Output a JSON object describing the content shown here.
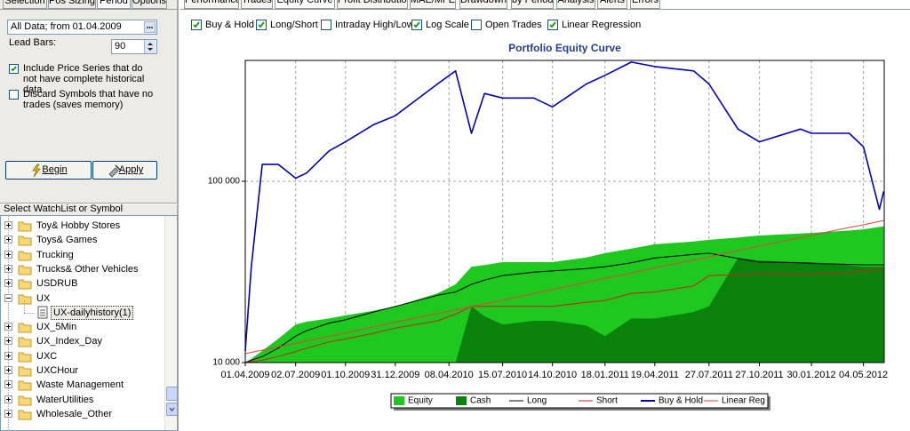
{
  "left_tabs": [
    {
      "label": "Selection",
      "active": false
    },
    {
      "label": "Pos Sizing",
      "active": false
    },
    {
      "label": "Period",
      "active": true
    },
    {
      "label": "Options",
      "active": false
    }
  ],
  "period": {
    "range": "All Data; from 01.04.2009",
    "lead_bars_label": "Lead Bars:",
    "lead_bars": 90
  },
  "settings": [
    {
      "label": "Include Price Series that do not have complete historical data",
      "checked": true
    },
    {
      "label": "Discard Symbols that have no trades (saves memory)",
      "checked": false
    }
  ],
  "buttons": [
    "Begin",
    "Apply"
  ],
  "watchlist": {
    "title": "Select WatchList or Symbol",
    "items": [
      {
        "label": "Toy& Hobby Stores",
        "kind": "folder",
        "expanded": false
      },
      {
        "label": "Toys& Games",
        "kind": "folder",
        "expanded": false
      },
      {
        "label": "Trucking",
        "kind": "folder",
        "expanded": false
      },
      {
        "label": "Trucks& Other Vehicles",
        "kind": "folder",
        "expanded": false
      },
      {
        "label": "USDRUB",
        "kind": "folder",
        "expanded": false
      },
      {
        "label": "UX",
        "kind": "folder",
        "expanded": true
      },
      {
        "label": "UX-dailyhistory(1)",
        "kind": "symbol",
        "selected": true
      },
      {
        "label": "UX_5Min",
        "kind": "folder",
        "expanded": false
      },
      {
        "label": "UX_Index_Day",
        "kind": "folder",
        "expanded": false
      },
      {
        "label": "UXC",
        "kind": "folder",
        "expanded": false
      },
      {
        "label": "UXCHour",
        "kind": "folder",
        "expanded": false
      },
      {
        "label": "Waste Management",
        "kind": "folder",
        "expanded": false
      },
      {
        "label": "WaterUtilities",
        "kind": "folder",
        "expanded": false
      },
      {
        "label": "Wholesale_Other",
        "kind": "folder",
        "expanded": false
      }
    ]
  },
  "main_tabs": [
    {
      "label": "Performance",
      "active": false
    },
    {
      "label": "Trades",
      "active": false
    },
    {
      "label": "Equity Curve",
      "active": true
    },
    {
      "label": "Profit Distribution",
      "active": false
    },
    {
      "label": "MAE/MFE",
      "active": false
    },
    {
      "label": "Drawdown",
      "active": false
    },
    {
      "label": "by Period",
      "active": false
    },
    {
      "label": "Analysis",
      "active": false
    },
    {
      "label": "Alerts",
      "active": false
    },
    {
      "label": "Errors",
      "active": false
    }
  ],
  "chart_options": [
    {
      "label": "Buy & Hold",
      "checked": true
    },
    {
      "label": "Long/Short",
      "checked": true
    },
    {
      "label": "Intraday High/Low",
      "checked": false
    },
    {
      "label": "Log Scale",
      "checked": true
    },
    {
      "label": "Open Trades",
      "checked": false
    },
    {
      "label": "Linear Regression",
      "checked": true
    }
  ],
  "chart_data": {
    "type": "line",
    "title": "Portfolio Equity Curve",
    "log_scale": true,
    "grid": true,
    "legend": "bottom",
    "x": [
      "01.04.2009",
      "12.04.2009",
      "02.05.2009",
      "31.05.2009",
      "02.07.2009",
      "22.07.2009",
      "01.09.2009",
      "01.10.2009",
      "21.11.2009",
      "31.12.2009",
      "18.03.2010",
      "20.04.2010",
      "19.05.2010",
      "12.06.2010",
      "15.07.2010",
      "10.09.2010",
      "14.10.2010",
      "15.12.2010",
      "18.01.2011",
      "07.03.2011",
      "19.04.2011",
      "29.06.2011",
      "27.07.2011",
      "18.09.2011",
      "27.10.2011",
      "10.01.2012",
      "30.01.2012",
      "08.04.2012",
      "04.05.2012",
      "02.06.2012",
      "10.06.2012"
    ],
    "xlim": [
      "01.04.2009",
      "11.06.2012"
    ],
    "xticks": [
      "01.04.2009",
      "02.07.2009",
      "01.10.2009",
      "31.12.2009",
      "08.04.2010",
      "15.07.2010",
      "14.10.2010",
      "18.01.2011",
      "19.04.2011",
      "27.07.2011",
      "27.10.2011",
      "30.01.2012",
      "04.05.2012"
    ],
    "ylim": [
      10000,
      464000
    ],
    "yticks": [
      {
        "value": 10000,
        "label": "10 000"
      },
      {
        "value": 100000,
        "label": "100 000"
      }
    ],
    "series": [
      {
        "name": "Equity",
        "kind": "area",
        "color": "#1ec81e",
        "values": [
          10000,
          10500,
          11600,
          13500,
          16200,
          16800,
          17500,
          18200,
          19300,
          20400,
          24100,
          27000,
          33800,
          34500,
          35800,
          35800,
          35800,
          38000,
          40100,
          42500,
          44900,
          46500,
          47500,
          49000,
          50200,
          51500,
          51900,
          53500,
          54300,
          56000,
          56300
        ]
      },
      {
        "name": "Cash",
        "kind": "area",
        "color": "#0b820b",
        "values": [
          10000,
          10000,
          10000,
          10000,
          10000,
          10000,
          10000,
          10000,
          10000,
          10000,
          10000,
          10000,
          20400,
          18000,
          16200,
          17000,
          17000,
          16000,
          14000,
          17500,
          17500,
          19000,
          20400,
          37800,
          36500,
          35800,
          35800,
          34500,
          33800,
          33800,
          33800
        ]
      },
      {
        "name": "Long",
        "kind": "line",
        "color": "#000000",
        "values": [
          10000,
          10300,
          10800,
          12000,
          14000,
          15000,
          16500,
          17200,
          19000,
          20400,
          23500,
          24500,
          27000,
          28500,
          30200,
          31500,
          32000,
          33000,
          33800,
          35500,
          37800,
          39500,
          40100,
          37500,
          35800,
          35500,
          35200,
          34800,
          34600,
          34600,
          34600
        ]
      },
      {
        "name": "Short",
        "kind": "line",
        "color": "#cc2020",
        "values": [
          10000,
          10100,
          10300,
          10800,
          11500,
          12000,
          13000,
          13500,
          14500,
          15500,
          17000,
          18500,
          20400,
          20400,
          20400,
          20400,
          20400,
          21500,
          22000,
          24100,
          24500,
          26500,
          30200,
          30500,
          31000,
          30800,
          30800,
          31500,
          32000,
          32500,
          32500
        ]
      },
      {
        "name": "Buy & Hold",
        "kind": "line",
        "color": "#0000b4",
        "values": [
          11600,
          33800,
          124000,
          124000,
          104000,
          111000,
          147000,
          165000,
          205000,
          230000,
          344000,
          406000,
          184000,
          305000,
          288000,
          288000,
          257000,
          344000,
          384000,
          454000,
          429000,
          406000,
          344000,
          194000,
          165000,
          194000,
          184000,
          184000,
          155000,
          70000,
          88000
        ]
      },
      {
        "name": "Linear Reg",
        "kind": "line",
        "color": "#e04040",
        "values": [
          11200,
          11380,
          11710,
          12220,
          12740,
          13170,
          13970,
          14580,
          15730,
          16720,
          18640,
          19530,
          20380,
          21120,
          22030,
          24040,
          25330,
          27720,
          29130,
          31180,
          33320,
          36790,
          38280,
          41400,
          43900,
          48830,
          50470,
          55590,
          57540,
          60090,
          60800
        ]
      }
    ]
  }
}
